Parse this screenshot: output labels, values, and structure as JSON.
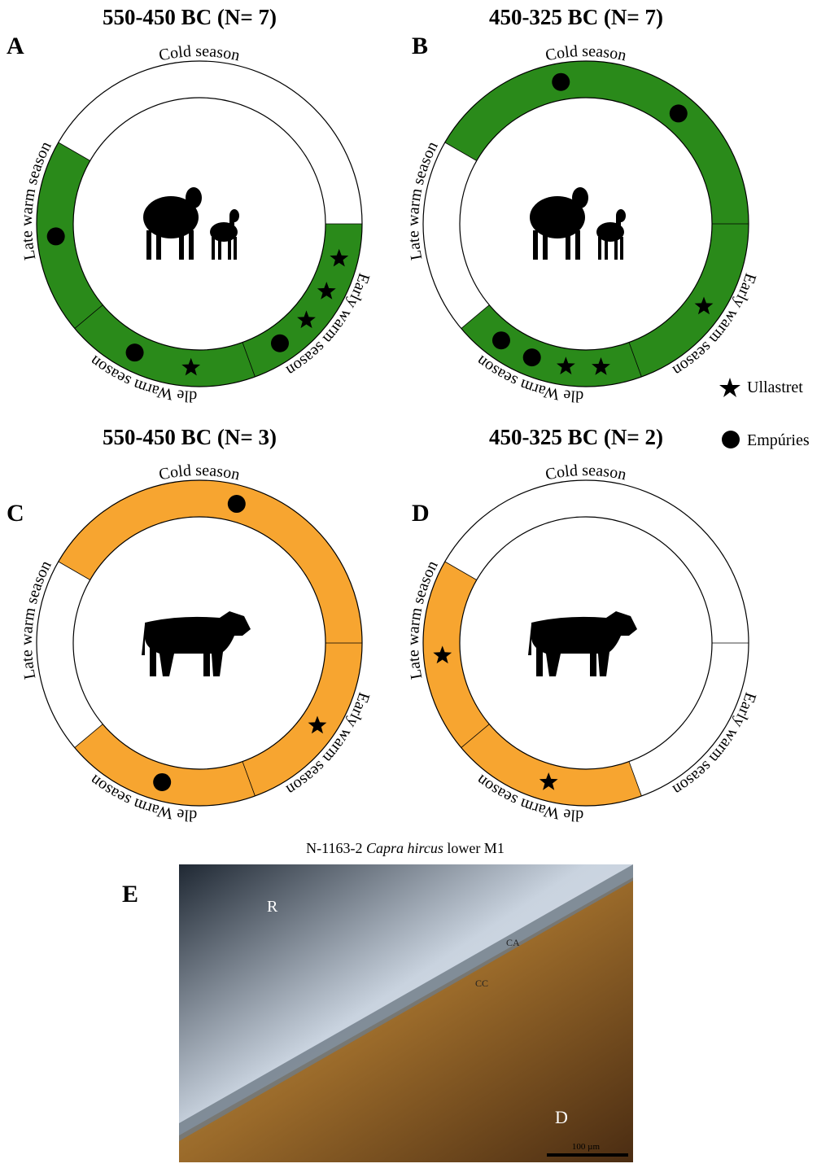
{
  "legend": [
    {
      "label": "Ullastret",
      "symbol": "star"
    },
    {
      "label": "Empúries",
      "symbol": "circle"
    }
  ],
  "panels": [
    {
      "letter": "A",
      "title": "550-450 BC (N= 7)",
      "color": "#2a8a1a",
      "seasons": [
        {
          "label": "Cold season",
          "shaded": false,
          "counts": [
            0,
            0
          ]
        },
        {
          "label": "Early warm season",
          "shaded": true,
          "counts": [
            3,
            1
          ]
        },
        {
          "label": "Middle Warm season",
          "shaded": true,
          "counts": [
            1,
            1
          ]
        },
        {
          "label": "Late warm season",
          "shaded": true,
          "counts": [
            0,
            1
          ]
        }
      ]
    },
    {
      "letter": "B",
      "title": "450-325 BC (N= 7)",
      "color": "#2a8a1a",
      "seasons": [
        {
          "label": "Cold season",
          "shaded": true,
          "counts": [
            0,
            2
          ]
        },
        {
          "label": "Early warm season",
          "shaded": true,
          "counts": [
            1,
            0
          ]
        },
        {
          "label": "Middle Warm season",
          "shaded": true,
          "counts": [
            2,
            2
          ]
        },
        {
          "label": "Late warm season",
          "shaded": false,
          "counts": [
            0,
            0
          ]
        }
      ]
    },
    {
      "letter": "C",
      "title": "550-450 BC (N= 3)",
      "color": "#f7a530",
      "seasons": [
        {
          "label": "Cold season",
          "shaded": true,
          "counts": [
            0,
            1
          ]
        },
        {
          "label": "Early warm season",
          "shaded": true,
          "counts": [
            1,
            0
          ]
        },
        {
          "label": "Middle Warm season",
          "shaded": true,
          "counts": [
            0,
            1
          ]
        },
        {
          "label": "Late warm season",
          "shaded": false,
          "counts": [
            0,
            0
          ]
        }
      ]
    },
    {
      "letter": "D",
      "title": "450-325 BC (N= 2)",
      "color": "#f7a530",
      "seasons": [
        {
          "label": "Cold season",
          "shaded": false,
          "counts": [
            0,
            0
          ]
        },
        {
          "label": "Early warm season",
          "shaded": false,
          "counts": [
            0,
            0
          ]
        },
        {
          "label": "Middle Warm season",
          "shaded": true,
          "counts": [
            1,
            0
          ]
        },
        {
          "label": "Late warm season",
          "shaded": true,
          "counts": [
            1,
            0
          ]
        }
      ]
    }
  ],
  "micrograph": {
    "letter": "E",
    "caption": {
      "prefix": "N-1163-2",
      "species": "Capra hircus",
      "suffix": "lower M1"
    },
    "labels": {
      "r": "R",
      "ca": "CA",
      "cc": "CC",
      "d": "D"
    },
    "scale": "100 µm"
  }
}
